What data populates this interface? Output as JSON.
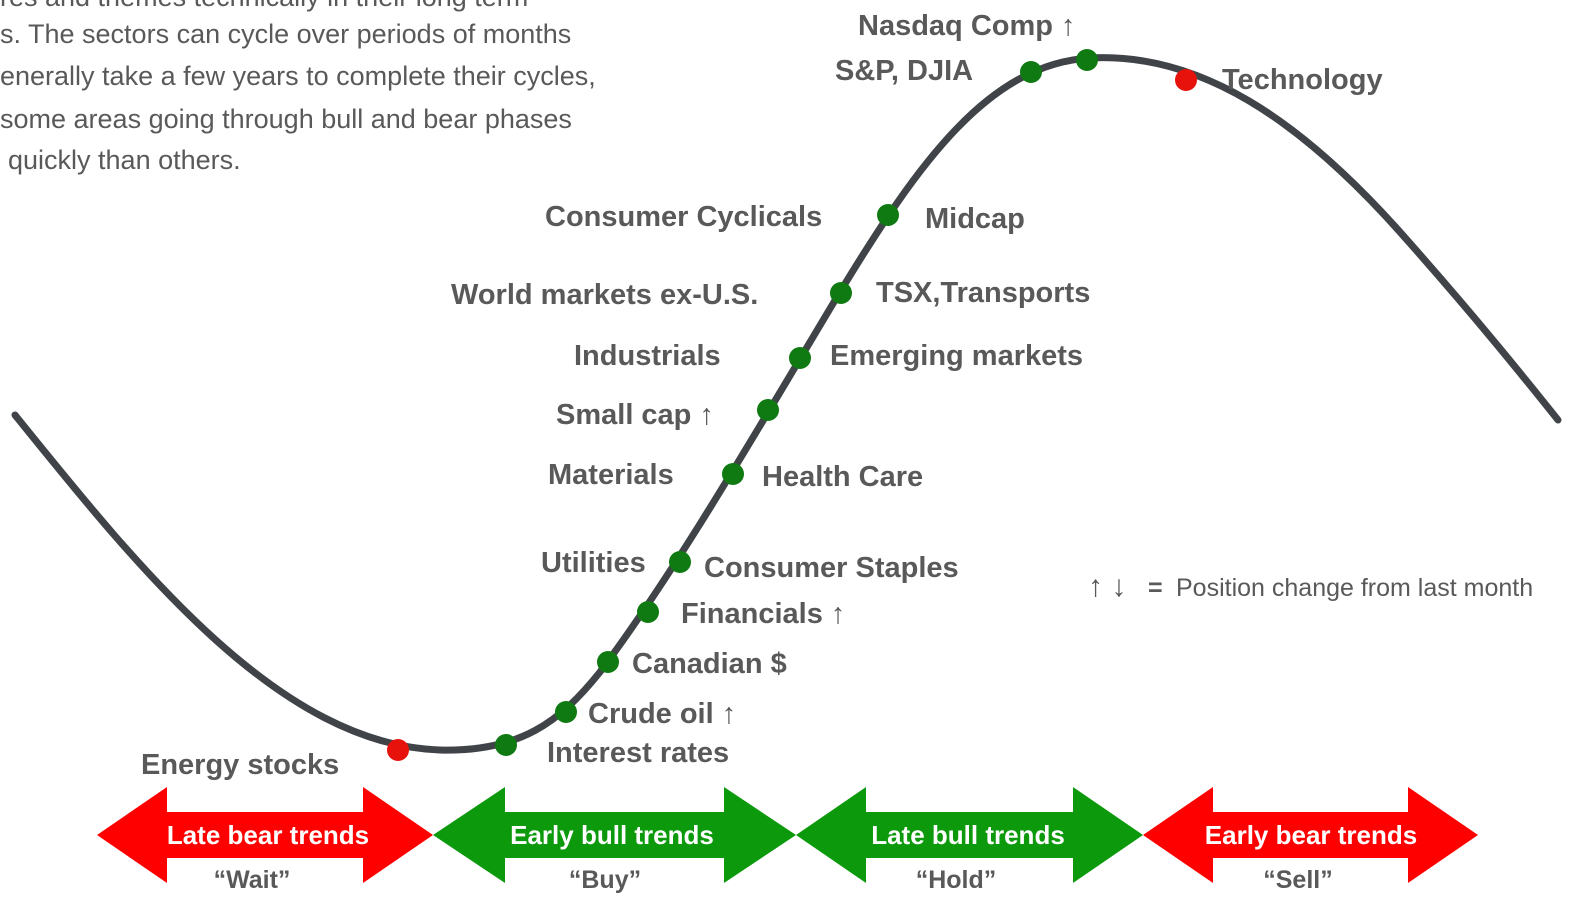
{
  "intro": {
    "lines": [
      "res and themes technically in their long term",
      "s. The sectors can cycle over periods of months",
      "enerally take a few years to complete their cycles,",
      "some areas going through bull and bear phases",
      "quickly than others."
    ]
  },
  "labels": [
    "Nasdaq Comp ↑",
    "S&P, DJIA",
    "Technology",
    "Consumer  Cyclicals",
    "Midcap",
    "World  markets ex-U.S.",
    "TSX,Transports",
    "Industrials",
    "Emerging markets",
    "Small  cap ↑",
    "Materials",
    "Health Care",
    "Utilities",
    "Consumer  Staples",
    "Financials ↑",
    "Canadian  $",
    "Crude oil ↑",
    "Interest rates",
    "Energy stocks"
  ],
  "bands": [
    {
      "title": "Late bear trends",
      "action": "“Wait”"
    },
    {
      "title": "Early bull trends",
      "action": "“Buy”"
    },
    {
      "title": "Late bull trends",
      "action": "“Hold”"
    },
    {
      "title": "Early bear trends",
      "action": "“Sell”"
    }
  ],
  "legend": {
    "arrows": "↑ ↓",
    "equals": "=",
    "text": "Position change from last month"
  }
}
